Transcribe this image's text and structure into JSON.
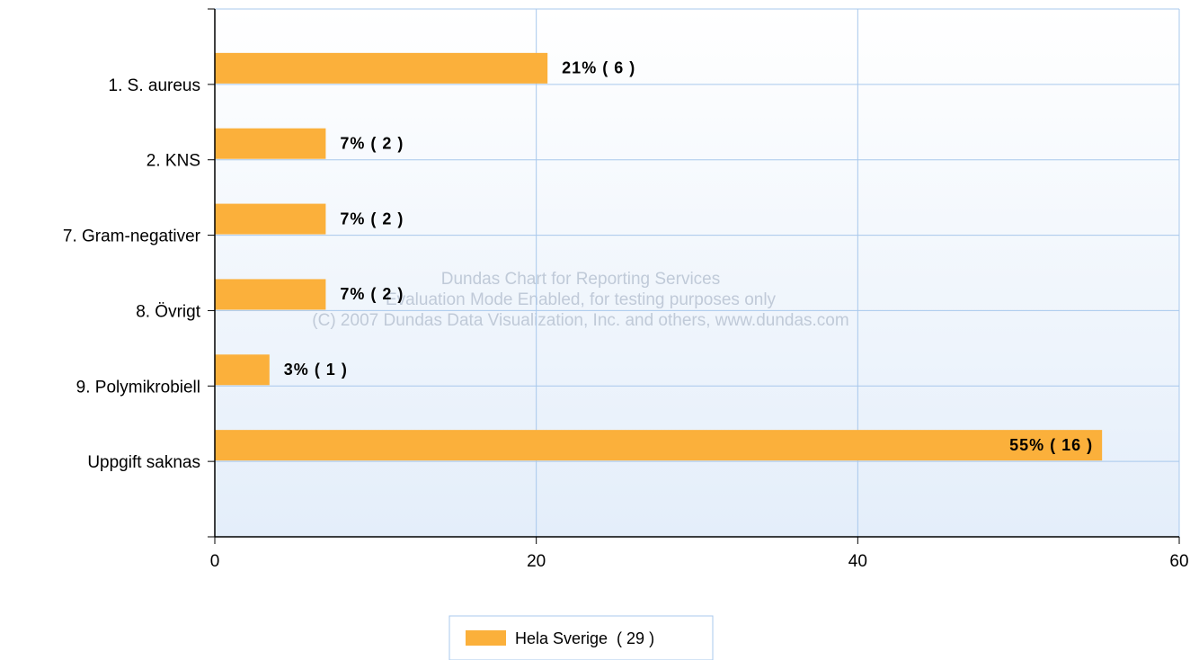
{
  "chart_data": {
    "type": "bar",
    "orientation": "horizontal",
    "categories": [
      "1. S. aureus",
      "2. KNS",
      "7. Gram-negativer",
      "8. Övrigt",
      "9. Polymikrobiell",
      "Uppgift saknas"
    ],
    "series": [
      {
        "name": "Hela Sverige  ( 29 )",
        "color": "#fbb03b",
        "values": [
          20.7,
          6.9,
          6.9,
          6.9,
          3.4,
          55.2
        ],
        "value_labels": [
          "21% ( 6 )",
          "7% ( 2 )",
          "7% ( 2 )",
          "7% ( 2 )",
          "3% ( 1 )",
          "55% ( 16 )"
        ]
      }
    ],
    "xlim": [
      0,
      60
    ],
    "xticks": [
      0,
      20,
      40,
      60
    ],
    "grid": true,
    "legend": "bottom",
    "watermark": [
      "Dundas Chart for Reporting Services",
      "Evaluation Mode Enabled, for testing purposes only",
      "(C) 2007 Dundas Data Visualization, Inc. and others, www.dundas.com"
    ]
  }
}
